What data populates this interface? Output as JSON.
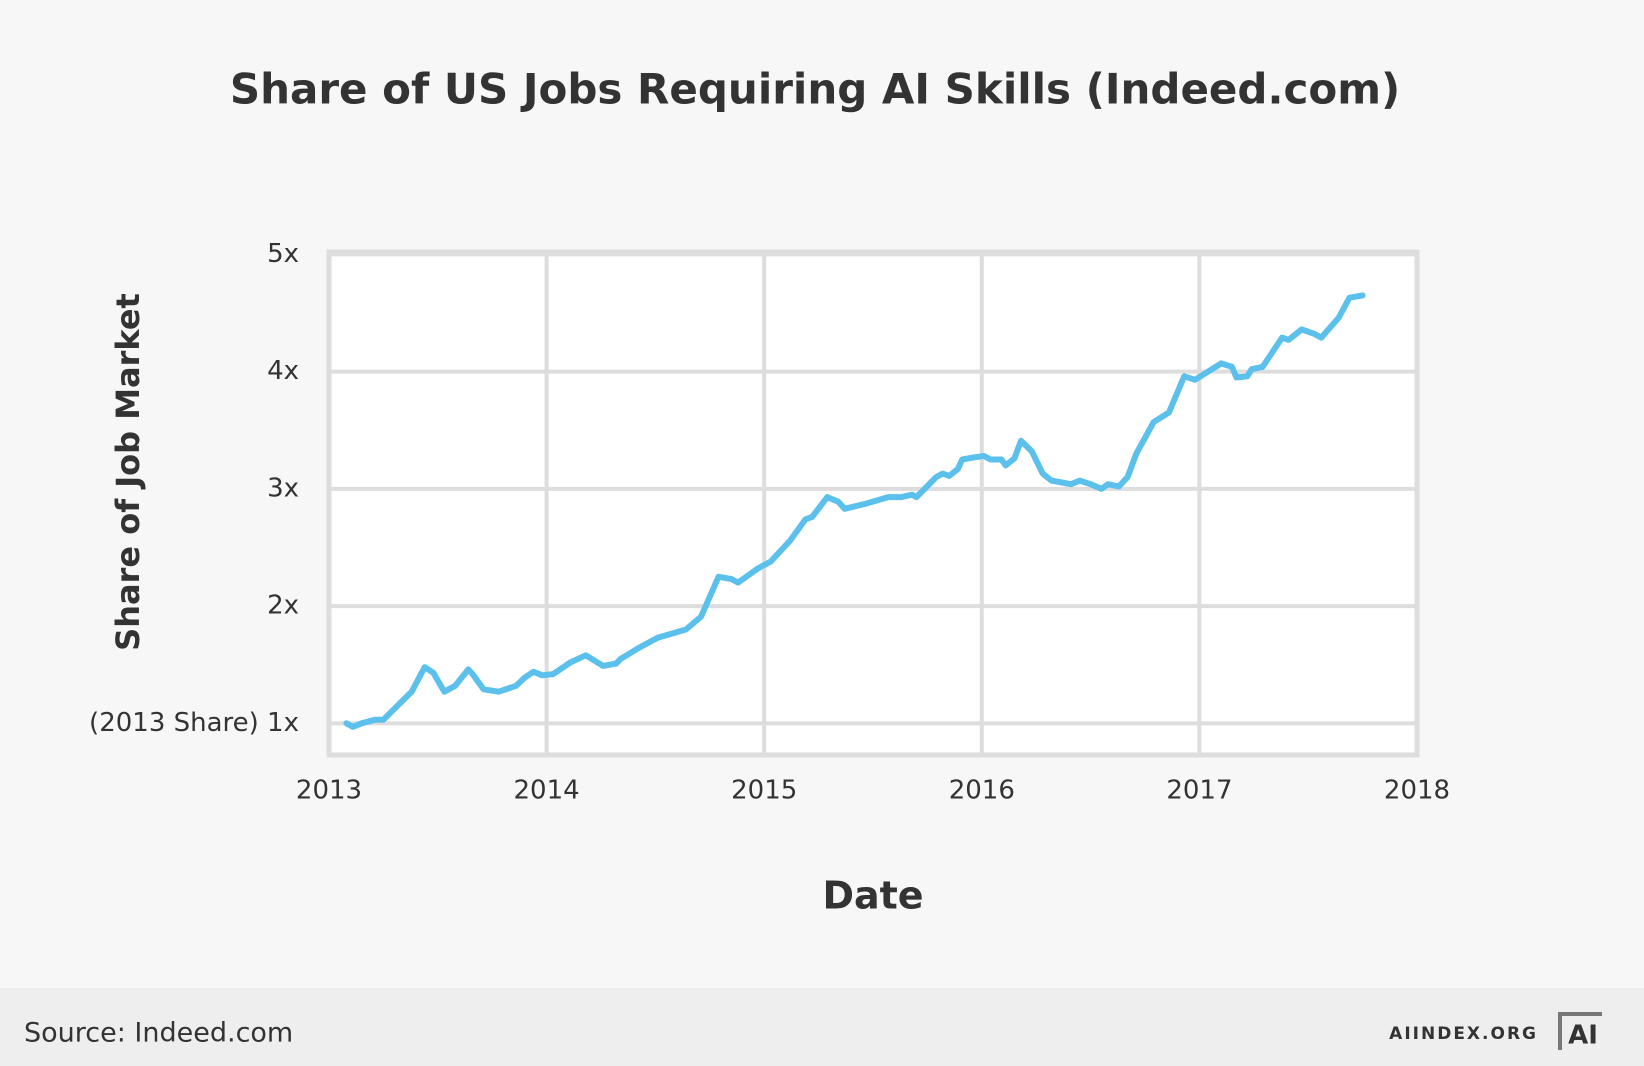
{
  "chart_data": {
    "type": "line",
    "title": "Share of US Jobs Requiring AI Skills (Indeed.com)",
    "x_label": "Date",
    "y_label": "Share of Job Market",
    "x": [
      2013.08,
      2013.11,
      2013.15,
      2013.21,
      2013.25,
      2013.32,
      2013.38,
      2013.44,
      2013.48,
      2013.53,
      2013.58,
      2013.64,
      2013.66,
      2013.71,
      2013.78,
      2013.86,
      2013.9,
      2013.94,
      2013.98,
      2014.03,
      2014.11,
      2014.18,
      2014.26,
      2014.32,
      2014.34,
      2014.43,
      2014.51,
      2014.64,
      2014.71,
      2014.79,
      2014.85,
      2014.88,
      2014.97,
      2015.03,
      2015.12,
      2015.19,
      2015.22,
      2015.29,
      2015.34,
      2015.37,
      2015.46,
      2015.57,
      2015.63,
      2015.68,
      2015.7,
      2015.79,
      2015.82,
      2015.85,
      2015.89,
      2015.91,
      2015.97,
      2016.01,
      2016.04,
      2016.09,
      2016.11,
      2016.15,
      2016.18,
      2016.23,
      2016.28,
      2016.32,
      2016.38,
      2016.41,
      2016.45,
      2016.5,
      2016.55,
      2016.58,
      2016.63,
      2016.67,
      2016.71,
      2016.79,
      2016.86,
      2016.93,
      2016.98,
      2017.04,
      2017.1,
      2017.15,
      2017.17,
      2017.22,
      2017.24,
      2017.29,
      2017.33,
      2017.38,
      2017.41,
      2017.47,
      2017.53,
      2017.56,
      2017.64,
      2017.69,
      2017.72,
      2017.75
    ],
    "values": [
      1.0,
      0.97,
      1.0,
      1.03,
      1.03,
      1.16,
      1.27,
      1.48,
      1.43,
      1.27,
      1.32,
      1.46,
      1.42,
      1.29,
      1.27,
      1.32,
      1.39,
      1.44,
      1.41,
      1.42,
      1.52,
      1.58,
      1.49,
      1.51,
      1.55,
      1.65,
      1.73,
      1.8,
      1.91,
      2.25,
      2.23,
      2.2,
      2.32,
      2.38,
      2.56,
      2.74,
      2.76,
      2.93,
      2.89,
      2.83,
      2.87,
      2.93,
      2.93,
      2.95,
      2.93,
      3.1,
      3.13,
      3.11,
      3.17,
      3.25,
      3.27,
      3.28,
      3.25,
      3.25,
      3.2,
      3.26,
      3.41,
      3.32,
      3.13,
      3.07,
      3.05,
      3.04,
      3.07,
      3.04,
      3.0,
      3.04,
      3.02,
      3.1,
      3.3,
      3.57,
      3.65,
      3.96,
      3.93,
      4.0,
      4.07,
      4.04,
      3.95,
      3.96,
      4.02,
      4.04,
      4.15,
      4.29,
      4.27,
      4.36,
      4.32,
      4.29,
      4.46,
      4.63,
      4.64,
      4.65
    ],
    "color": "#5bc0eb",
    "xlim": [
      2013,
      2018
    ],
    "xticks": [
      2013,
      2014,
      2015,
      2016,
      2017,
      2018
    ],
    "ylim": [
      0.73,
      5.02
    ],
    "yticks": [
      {
        "value": 1,
        "label": "(2013 Share) 1x"
      },
      {
        "value": 2,
        "label": "2x"
      },
      {
        "value": 3,
        "label": "3x"
      },
      {
        "value": 4,
        "label": "4x"
      },
      {
        "value": 5,
        "label": "5x"
      }
    ],
    "grid": true
  },
  "footer": {
    "source": "Source: Indeed.com",
    "site": "AIINDEX.ORG",
    "logo": "AI"
  }
}
